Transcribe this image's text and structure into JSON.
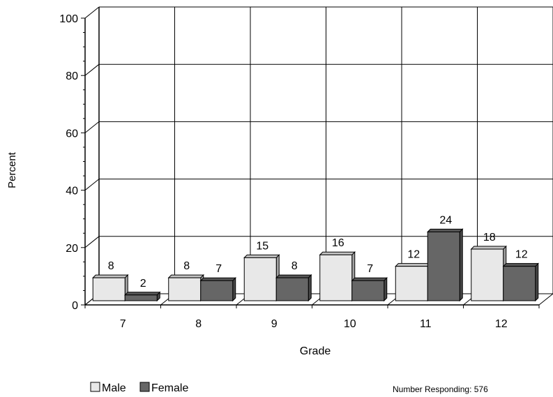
{
  "chart_data": {
    "type": "bar",
    "title": "",
    "xlabel": "Grade",
    "ylabel": "Percent",
    "categories": [
      "7",
      "8",
      "9",
      "10",
      "11",
      "12"
    ],
    "series": [
      {
        "name": "Male",
        "values": [
          8,
          8,
          15,
          16,
          12,
          18
        ],
        "color": "#e8e8e8"
      },
      {
        "name": "Female",
        "values": [
          2,
          7,
          8,
          7,
          24,
          12
        ],
        "color": "#666666"
      }
    ],
    "ylim": [
      0,
      100
    ],
    "yticks": [
      0,
      20,
      40,
      60,
      80,
      100
    ],
    "grid": true,
    "legend": "bottom-left",
    "three_d": true
  },
  "footer": {
    "note": "Number Responding: 576"
  }
}
